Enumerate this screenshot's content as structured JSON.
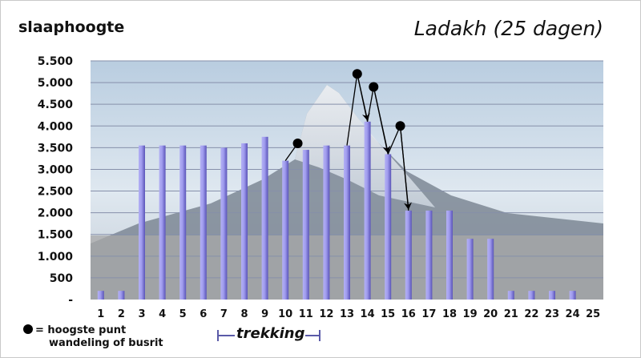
{
  "colors": {
    "bar_light": "#a7a4ee",
    "bar_dark": "#5a54b8",
    "grid": "#8a8fa8",
    "plot_bg_top": "#c8d6e4",
    "plot_bg_bottom": "#a9a9a9",
    "mountain": "#6e7a88",
    "snow": "#eef2f6",
    "trek": "#5a5aa8",
    "marker": "#000000"
  },
  "legend": {
    "dot_text": "= hoogste punt",
    "dot_text2": "wandeling of busrit",
    "trek_label": "trekking"
  },
  "chart_data": {
    "type": "bar",
    "title": "Ladakh (25 dagen)",
    "ylabel": "slaaphoogte",
    "xlabel": "",
    "ylim": [
      0,
      5500
    ],
    "yticks": [
      0,
      500,
      1000,
      1500,
      2000,
      2500,
      3000,
      3500,
      4000,
      4500,
      5000,
      5500
    ],
    "ytick_labels": [
      "-",
      "500",
      "1.000",
      "1.500",
      "2.000",
      "2.500",
      "3.000",
      "3.500",
      "4.000",
      "4.500",
      "5.000",
      "5.500"
    ],
    "grid": true,
    "categories": [
      "1",
      "2",
      "3",
      "4",
      "5",
      "6",
      "7",
      "8",
      "9",
      "10",
      "11",
      "12",
      "13",
      "14",
      "15",
      "16",
      "17",
      "18",
      "19",
      "20",
      "21",
      "22",
      "23",
      "24",
      "25"
    ],
    "values": [
      200,
      200,
      3550,
      3550,
      3550,
      3550,
      3500,
      3600,
      3750,
      3200,
      3450,
      3550,
      3550,
      4100,
      3350,
      2050,
      2050,
      2050,
      1400,
      1400,
      200,
      200,
      200,
      200,
      0
    ],
    "high_points": [
      {
        "day": 10.6,
        "altitude": 3600,
        "to_day": 10.0,
        "to_altitude": 3200
      },
      {
        "day": 13.5,
        "altitude": 5200,
        "to_day": 13.0,
        "to_altitude": 3550
      },
      {
        "day": 13.5,
        "altitude": 5200,
        "to_day": 14.0,
        "to_altitude": 4100
      },
      {
        "day": 14.3,
        "altitude": 4900,
        "to_day": 14.0,
        "to_altitude": 4100
      },
      {
        "day": 14.3,
        "altitude": 4900,
        "to_day": 15.0,
        "to_altitude": 3350
      },
      {
        "day": 15.6,
        "altitude": 4000,
        "to_day": 15.0,
        "to_altitude": 3350
      },
      {
        "day": 15.6,
        "altitude": 4000,
        "to_day": 16.0,
        "to_altitude": 2050
      }
    ]
  }
}
